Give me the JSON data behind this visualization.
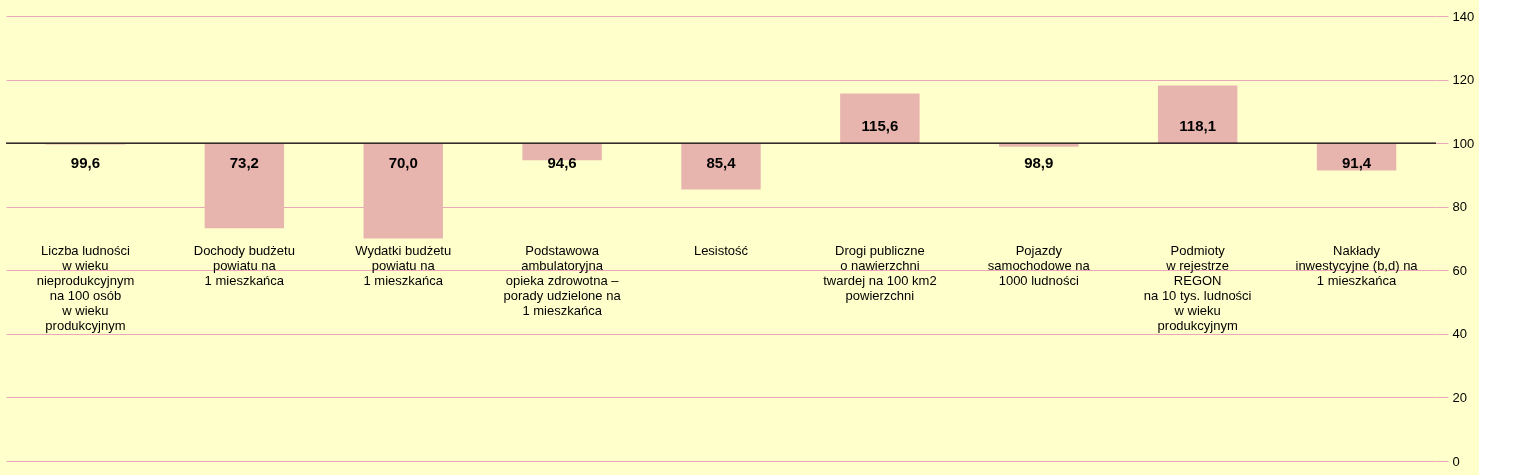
{
  "chart_data": {
    "type": "bar",
    "categories": [
      "Liczba ludności\nw wieku\nnieprodukcyjnym\nna 100 osób\nw wieku\nprodukcyjnym",
      "Dochody budżetu\npowiatu na\n1 mieszkańca",
      "Wydatki budżetu\npowiatu na\n1 mieszkańca",
      "Podstawowa\nambulatoryjna\nopieka zdrowotna –\nporady udzielone na\n1 mieszkańca",
      "Lesistość",
      "Drogi publiczne\no nawierzchni\ntwardej na 100 km2\npowierzchni",
      "Pojazdy\nsamochodowe na\n1000 ludności",
      "Podmioty\nw rejestrze\nREGON\nna 10 tys. ludności\nw wieku\nprodukcyjnym",
      "Nakłady\ninwestycyjne (b,d) na\n1 mieszkańca"
    ],
    "base": [
      100,
      100,
      100,
      100,
      100,
      100,
      100,
      100,
      100
    ],
    "values": [
      -0.4,
      -26.8,
      -30.0,
      -5.4,
      -14.6,
      15.6,
      -1.1,
      18.1,
      -8.6
    ],
    "value_labels": [
      "99,6",
      "73,2",
      "70,0",
      "94,6",
      "85,4",
      "115,6",
      "98,9",
      "118,1",
      "91,4"
    ],
    "color": "#e8b4ae",
    "ylim": [
      0,
      140
    ],
    "yticks": [
      0,
      20,
      40,
      60,
      80,
      100,
      120,
      140
    ],
    "ref_lines": [
      {
        "axis": "y",
        "value": 100,
        "color": "#000000"
      }
    ],
    "grid": "y"
  }
}
